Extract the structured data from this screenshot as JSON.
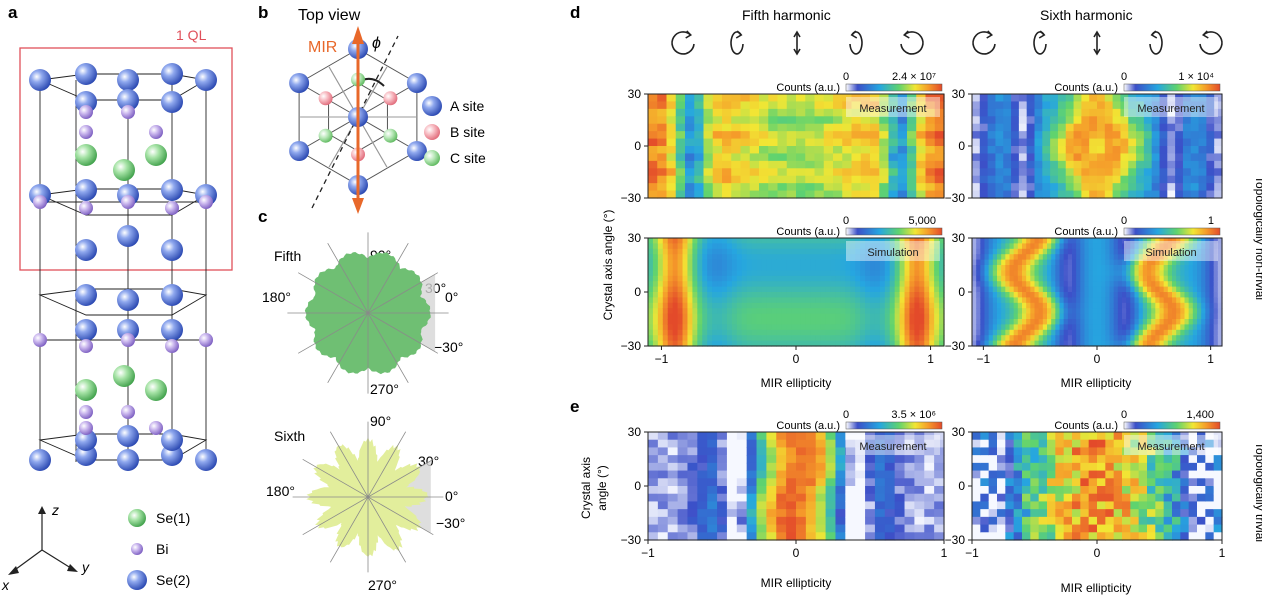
{
  "panels": {
    "a": "a",
    "b": "b",
    "c": "c",
    "d": "d",
    "e": "e"
  },
  "panel_a": {
    "ql_label": "1 QL",
    "legend": [
      "Se(1)",
      "Bi",
      "Se(2)"
    ],
    "axes": {
      "z": "z",
      "y": "y",
      "x": "x"
    },
    "colors": {
      "se1": "#6cc36c",
      "bi": "#a98fd6",
      "se2": "#4a6fd0",
      "ql_box": "#e0505a"
    }
  },
  "panel_b": {
    "title": "Top view",
    "mir": "MIR",
    "phi": "ϕ",
    "legend": [
      "A site",
      "B site",
      "C site"
    ],
    "colors": {
      "a": "#4a6fd0",
      "b": "#f08a95",
      "c": "#7ccf7c",
      "arrow": "#e8682a"
    }
  },
  "panel_c": {
    "fifth": {
      "name": "Fifth",
      "angle_labels": [
        "90°",
        "30°",
        "0°",
        "180°",
        "−30°",
        "270°"
      ],
      "fill": "#6fbf73"
    },
    "sixth": {
      "name": "Sixth",
      "angle_labels": [
        "90°",
        "30°",
        "0°",
        "180°",
        "−30°",
        "270°"
      ],
      "fill": "#e2ee9c"
    }
  },
  "panel_d": {
    "col_titles": [
      "Fifth harmonic",
      "Sixth harmonic"
    ],
    "ylabel": "Crystal axis angle (°)",
    "side_label": "Topologically non-trivial",
    "xlabel": "MIR ellipticity",
    "colorbars": [
      {
        "label": "Counts (a.u.)",
        "min": "0",
        "max": "2.4 × 10⁷"
      },
      {
        "label": "Counts (a.u.)",
        "min": "0",
        "max": "1 × 10⁴"
      },
      {
        "label": "Counts (a.u.)",
        "min": "0",
        "max": "5,000"
      },
      {
        "label": "Counts (a.u.)",
        "min": "0",
        "max": "1"
      }
    ],
    "tags": [
      "Measurement",
      "Measurement",
      "Simulation",
      "Simulation"
    ],
    "yticks": [
      "30",
      "0",
      "−30"
    ],
    "xticks": [
      "−1",
      "0",
      "1"
    ]
  },
  "panel_e": {
    "ylabel_line1": "Crystal axis",
    "ylabel_line2": "angle (°)",
    "side_label": "Topologically trivial",
    "xlabel": "MIR ellipticity",
    "colorbars": [
      {
        "label": "Counts (a.u.)",
        "min": "0",
        "max": "3.5 × 10⁶"
      },
      {
        "label": "Counts (a.u.)",
        "min": "0",
        "max": "1,400"
      }
    ],
    "tags": [
      "Measurement",
      "Measurement"
    ],
    "yticks": [
      "30",
      "0",
      "−30"
    ],
    "xticks": [
      "−1",
      "0",
      "1"
    ]
  },
  "chart_data": [
    {
      "type": "heatmap",
      "title": "Fifth harmonic – Measurement (non-trivial)",
      "xlabel": "MIR ellipticity",
      "ylabel": "Crystal axis angle (°)",
      "xlim": [
        -1.1,
        1.1
      ],
      "ylim": [
        -30,
        30
      ],
      "colorbar": {
        "label": "Counts (a.u.)",
        "min": 0,
        "max": 24000000
      }
    },
    {
      "type": "heatmap",
      "title": "Sixth harmonic – Measurement (non-trivial)",
      "xlabel": "MIR ellipticity",
      "ylabel": "Crystal axis angle (°)",
      "xlim": [
        -1.1,
        1.1
      ],
      "ylim": [
        -30,
        30
      ],
      "colorbar": {
        "label": "Counts (a.u.)",
        "min": 0,
        "max": 10000
      }
    },
    {
      "type": "heatmap",
      "title": "Fifth harmonic – Simulation",
      "xlabel": "MIR ellipticity",
      "ylabel": "Crystal axis angle (°)",
      "xlim": [
        -1.1,
        1.1
      ],
      "ylim": [
        -30,
        30
      ],
      "colorbar": {
        "label": "Counts (a.u.)",
        "min": 0,
        "max": 5000
      }
    },
    {
      "type": "heatmap",
      "title": "Sixth harmonic – Simulation",
      "xlabel": "MIR ellipticity",
      "ylabel": "Crystal axis angle (°)",
      "xlim": [
        -1.1,
        1.1
      ],
      "ylim": [
        -30,
        30
      ],
      "colorbar": {
        "label": "Counts (a.u.)",
        "min": 0,
        "max": 1
      }
    },
    {
      "type": "heatmap",
      "title": "Fifth harmonic – Measurement (trivial)",
      "xlabel": "MIR ellipticity",
      "ylabel": "Crystal axis angle (°)",
      "xlim": [
        -1,
        1
      ],
      "ylim": [
        -30,
        30
      ],
      "colorbar": {
        "label": "Counts (a.u.)",
        "min": 0,
        "max": 3500000
      }
    },
    {
      "type": "heatmap",
      "title": "Sixth harmonic – Measurement (trivial)",
      "xlabel": "MIR ellipticity",
      "ylabel": "Crystal axis angle (°)",
      "xlim": [
        -1,
        1
      ],
      "ylim": [
        -30,
        30
      ],
      "colorbar": {
        "label": "Counts (a.u.)",
        "min": 0,
        "max": 1400
      }
    }
  ]
}
